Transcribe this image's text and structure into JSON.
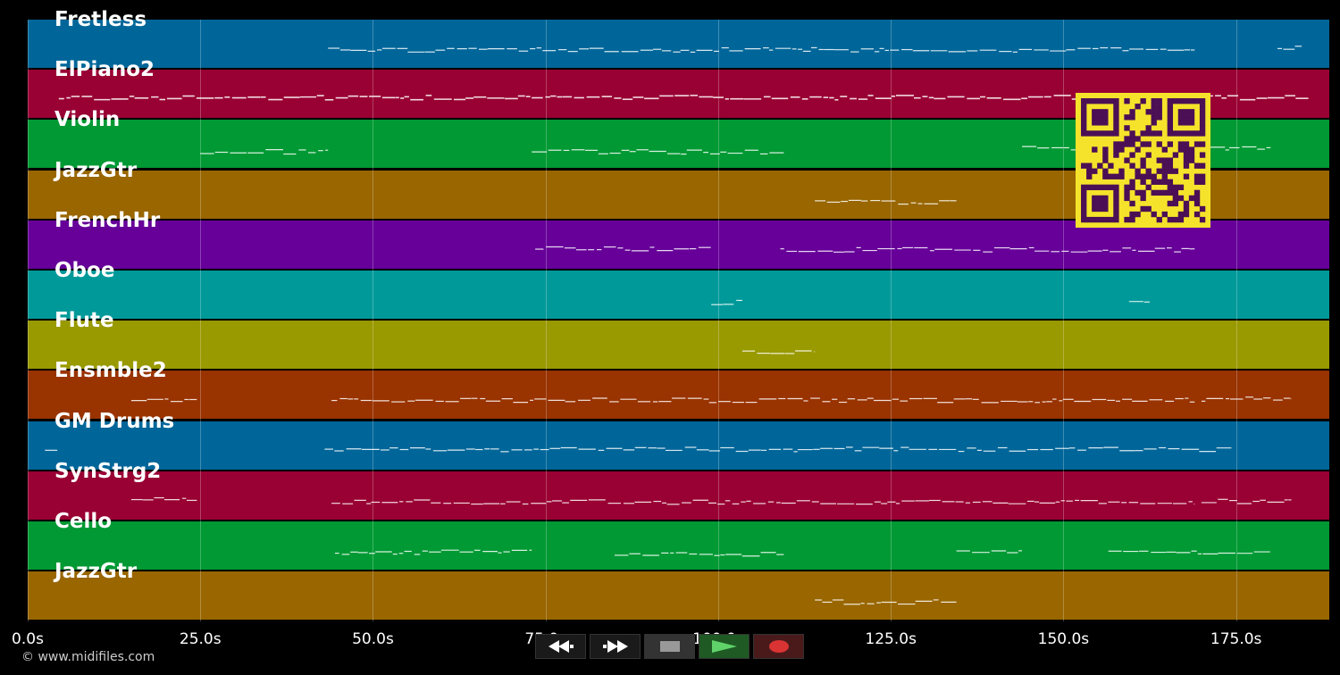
{
  "tracks": [
    {
      "name": "Fretless",
      "color": "#006699"
    },
    {
      "name": "ElPiano2",
      "color": "#990033"
    },
    {
      "name": "Violin",
      "color": "#009933"
    },
    {
      "name": "JazzGtr",
      "color": "#996600"
    },
    {
      "name": "FrenchHr",
      "color": "#660099"
    },
    {
      "name": "Oboe",
      "color": "#009999"
    },
    {
      "name": "Flute",
      "color": "#999900"
    },
    {
      "name": "Ensmble2",
      "color": "#993300"
    },
    {
      "name": "GM Drums",
      "color": "#006699"
    },
    {
      "name": "SynStrg2",
      "color": "#990033"
    },
    {
      "name": "Cello",
      "color": "#009933"
    },
    {
      "name": "JazzGtr",
      "color": "#996600"
    }
  ],
  "timeline": {
    "ticks": [
      "0.0s",
      "25.0s",
      "50.0s",
      "75.0s",
      "100.0s",
      "125.0s",
      "150.0s",
      "175.0s"
    ],
    "tick_values": [
      0,
      25,
      50,
      75,
      100,
      125,
      150,
      175
    ],
    "max_seconds": 188.5
  },
  "footer": {
    "copyright": "© www.midifiles.com"
  },
  "transport": {
    "rewind_icon": "rewind-icon",
    "fast_forward_icon": "fast-forward-icon",
    "stop_icon": "stop-icon",
    "play_icon": "play-icon",
    "record_icon": "record-icon"
  },
  "qr": {
    "icon": "qr-code-icon",
    "fg": "#4b0f55",
    "bg": "#f5e32b"
  },
  "notes": [
    {
      "track": 0,
      "segments": [
        [
          43.5,
          169
        ]
      ],
      "extra": [
        [
          181,
          184.5
        ]
      ]
    },
    {
      "track": 1,
      "segments": [
        [
          4.5,
          185.5
        ]
      ]
    },
    {
      "track": 2,
      "segments": [
        [
          25,
          43.5
        ],
        [
          73,
          109.5
        ],
        [
          144,
          180
        ]
      ]
    },
    {
      "track": 3,
      "segments": [
        [
          114,
          134.5
        ]
      ]
    },
    {
      "track": 4,
      "segments": [
        [
          73.5,
          99
        ],
        [
          109,
          169
        ]
      ]
    },
    {
      "track": 5,
      "segments": [
        [
          99,
          103.5
        ],
        [
          159.5,
          162.5
        ]
      ]
    },
    {
      "track": 6,
      "segments": [
        [
          103.5,
          114
        ]
      ]
    },
    {
      "track": 7,
      "segments": [
        [
          15,
          24.5
        ],
        [
          44,
          169
        ],
        [
          170,
          183
        ]
      ]
    },
    {
      "track": 8,
      "segments": [
        [
          2.5,
          4.5
        ],
        [
          43,
          174.5
        ]
      ]
    },
    {
      "track": 9,
      "segments": [
        [
          15,
          24.5
        ],
        [
          44,
          169
        ],
        [
          170,
          183
        ]
      ]
    },
    {
      "track": 10,
      "segments": [
        [
          44.5,
          73
        ],
        [
          85,
          109.5
        ],
        [
          134.5,
          144
        ],
        [
          156.5,
          180
        ]
      ]
    },
    {
      "track": 11,
      "segments": [
        [
          114,
          134.5
        ]
      ]
    }
  ]
}
